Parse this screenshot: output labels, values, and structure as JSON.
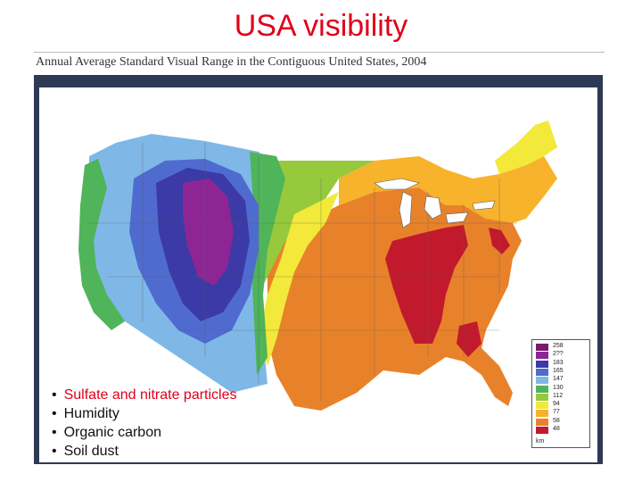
{
  "slide": {
    "title": "USA visibility"
  },
  "map": {
    "caption": "Annual Average Standard Visual Range in the Contiguous United States, 2004",
    "legend": {
      "unit": "km",
      "entries": [
        {
          "label": "258",
          "color": "#7a1a6e"
        },
        {
          "label": "2??",
          "color": "#8e2595"
        },
        {
          "label": "183",
          "color": "#3b3aa6"
        },
        {
          "label": "165",
          "color": "#4f6bd0"
        },
        {
          "label": "147",
          "color": "#7fb8e6"
        },
        {
          "label": "130",
          "color": "#4fb45a"
        },
        {
          "label": "112",
          "color": "#97c93d"
        },
        {
          "label": "94",
          "color": "#f2e93a"
        },
        {
          "label": "77",
          "color": "#f7b32b"
        },
        {
          "label": "58",
          "color": "#e8822a"
        },
        {
          "label": "48",
          "color": "#c21a2c"
        }
      ]
    }
  },
  "bullets": [
    {
      "text": "Sulfate and nitrate particles",
      "highlight": true
    },
    {
      "text": "Humidity",
      "highlight": false
    },
    {
      "text": "Organic carbon",
      "highlight": false
    },
    {
      "text": "Soil dust",
      "highlight": false
    }
  ]
}
